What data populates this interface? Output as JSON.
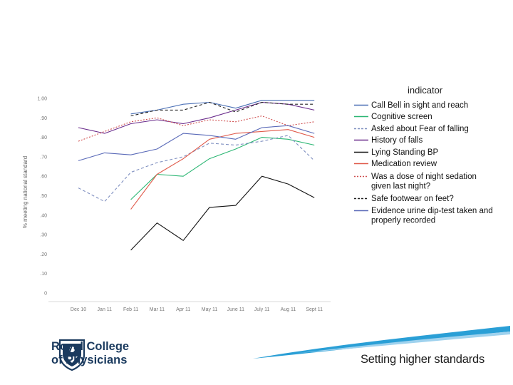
{
  "chart_data": {
    "type": "line",
    "title": "",
    "xlabel": "",
    "ylabel": "% meeting national standard",
    "categories": [
      "Dec 10",
      "Jan 11",
      "Feb 11",
      "Mar 11",
      "Apr 11",
      "May 11",
      "June 11",
      "July 11",
      "Aug 11",
      "Sept 11"
    ],
    "yticks": [
      "1.00",
      ".90",
      ".80",
      ".70",
      ".60",
      ".50",
      ".40",
      ".30",
      ".20",
      ".10",
      "0"
    ],
    "ylim": [
      0,
      1.0
    ],
    "grid": false,
    "legend_position": "right",
    "legend_title": "indicator",
    "series": [
      {
        "name": "Call Bell in sight and reach",
        "color": "#4a6fb5",
        "dash": "solid",
        "values": [
          null,
          null,
          0.92,
          0.94,
          0.97,
          0.98,
          0.95,
          0.99,
          0.99,
          0.99
        ]
      },
      {
        "name": "Cognitive screen",
        "color": "#2bb673",
        "dash": "solid",
        "values": [
          null,
          null,
          0.48,
          0.61,
          0.6,
          0.69,
          0.74,
          0.8,
          0.79,
          0.76
        ]
      },
      {
        "name": "Asked about Fear of falling",
        "color": "#7f8fc0",
        "dash": "dashed",
        "values": [
          0.54,
          0.47,
          0.62,
          0.67,
          0.7,
          0.77,
          0.76,
          0.78,
          0.81,
          0.68
        ]
      },
      {
        "name": "History of falls",
        "color": "#6a2c8c",
        "dash": "solid",
        "values": [
          0.85,
          0.82,
          0.87,
          0.89,
          0.87,
          0.9,
          0.94,
          0.98,
          0.97,
          0.94
        ]
      },
      {
        "name": "Lying Standing BP",
        "color": "#111111",
        "dash": "solid",
        "values": [
          null,
          null,
          0.22,
          0.36,
          0.27,
          0.44,
          0.45,
          0.6,
          0.56,
          0.49
        ]
      },
      {
        "name": "Medication review",
        "color": "#e05a4a",
        "dash": "solid",
        "values": [
          null,
          null,
          0.43,
          0.61,
          0.69,
          0.79,
          0.82,
          0.83,
          0.84,
          0.8
        ]
      },
      {
        "name": "Was a dose of night sedation given last night?",
        "color": "#d05050",
        "dash": "dotted",
        "values": [
          0.78,
          0.83,
          0.88,
          0.9,
          0.86,
          0.89,
          0.88,
          0.91,
          0.86,
          0.88
        ]
      },
      {
        "name": "Safe footwear on feet?",
        "color": "#222222",
        "dash": "dashed",
        "values": [
          null,
          null,
          0.91,
          0.94,
          0.94,
          0.98,
          0.93,
          0.98,
          0.97,
          0.97
        ]
      },
      {
        "name": "Evidence urine dip-test taken and properly recorded",
        "color": "#5a6ab8",
        "dash": "solid",
        "values": [
          0.68,
          0.72,
          0.71,
          0.74,
          0.82,
          0.81,
          0.79,
          0.85,
          0.86,
          0.82
        ]
      }
    ]
  },
  "legend": {
    "title": "indicator",
    "items": [
      {
        "lines": [
          "Call Bell in sight and reach"
        ]
      },
      {
        "lines": [
          "Cognitive screen"
        ]
      },
      {
        "lines": [
          "Asked about Fear of falling"
        ]
      },
      {
        "lines": [
          "History of falls"
        ]
      },
      {
        "lines": [
          "Lying Standing BP"
        ]
      },
      {
        "lines": [
          "Medication review"
        ]
      },
      {
        "lines": [
          "Was a dose of night sedation",
          "given last night?"
        ]
      },
      {
        "lines": [
          "Safe footwear on feet?"
        ]
      },
      {
        "lines": [
          "Evidence urine dip-test taken and",
          "properly recorded"
        ]
      }
    ]
  },
  "branding": {
    "logo_line1": "Royal College",
    "logo_line2": "of Physicians",
    "tagline": "Setting higher standards",
    "swoosh_color": "#2a9fd6"
  }
}
